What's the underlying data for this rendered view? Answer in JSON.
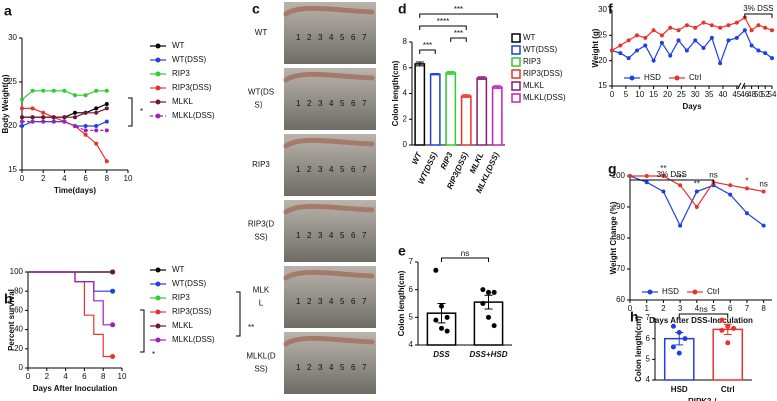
{
  "chart_data": [
    {
      "panel_label": "a",
      "type": "line",
      "xlabel": "Time(days)",
      "ylabel": "Body Weight(g)",
      "x": [
        0,
        1,
        2,
        3,
        4,
        5,
        6,
        7,
        8
      ],
      "xlim": [
        0,
        10
      ],
      "xticks": [
        0,
        2,
        4,
        6,
        8,
        10
      ],
      "ylim": [
        15,
        30
      ],
      "yticks": [
        15,
        20,
        25,
        30
      ],
      "legend": "right",
      "series": [
        {
          "name": "WT",
          "color": "#000000",
          "values": [
            21,
            21,
            21,
            21,
            21,
            21.5,
            21.5,
            22,
            22.5
          ]
        },
        {
          "name": "WT(DSS)",
          "color": "#1f3fe0",
          "values": [
            20,
            20.5,
            20.5,
            20.5,
            20.5,
            20,
            20,
            20,
            20.5
          ]
        },
        {
          "name": "RIP3",
          "color": "#2ecc2e",
          "values": [
            23,
            24,
            24,
            24,
            24,
            23.5,
            23.5,
            24,
            24
          ]
        },
        {
          "name": "RIP3(DSS)",
          "color": "#e8322b",
          "values": [
            22,
            22,
            21.5,
            21,
            20.5,
            20,
            19,
            18,
            16
          ]
        },
        {
          "name": "MLKL",
          "color": "#6b1a2a",
          "values": [
            21,
            21,
            21,
            21,
            21,
            21,
            21.5,
            21.5,
            22
          ]
        },
        {
          "name": "MLKL(DSS)",
          "color": "#a020c0",
          "dashed": true,
          "values": [
            20.5,
            20.5,
            20.5,
            20.5,
            20.5,
            20,
            19.5,
            19.5,
            19.5
          ]
        }
      ],
      "annotations": [
        "*"
      ]
    },
    {
      "panel_label": "b",
      "type": "step",
      "xlabel": "Days After Inoculation",
      "ylabel": "Percent survival",
      "x": [
        0,
        5,
        6,
        7,
        8,
        9
      ],
      "xlim": [
        0,
        10
      ],
      "xticks": [
        0,
        2,
        4,
        6,
        8,
        10
      ],
      "ylim": [
        0,
        100
      ],
      "yticks": [
        0,
        20,
        40,
        60,
        80,
        100
      ],
      "legend": "right",
      "series": [
        {
          "name": "WT",
          "color": "#000000",
          "values": [
            100,
            100,
            100,
            100,
            100,
            100
          ]
        },
        {
          "name": "WT(DSS)",
          "color": "#1f3fe0",
          "values": [
            100,
            90,
            90,
            80,
            80,
            80
          ]
        },
        {
          "name": "RIP3",
          "color": "#2ecc2e",
          "values": [
            100,
            100,
            100,
            100,
            100,
            100
          ]
        },
        {
          "name": "RIP3(DSS)",
          "color": "#e8322b",
          "values": [
            100,
            90,
            55,
            35,
            12,
            12
          ]
        },
        {
          "name": "MLKL",
          "color": "#6b1a2a",
          "values": [
            100,
            100,
            100,
            100,
            100,
            100
          ]
        },
        {
          "name": "MLKL(DSS)",
          "color": "#a020c0",
          "values": [
            100,
            90,
            90,
            70,
            45,
            45
          ]
        }
      ],
      "annotations": [
        "**",
        "*"
      ]
    },
    {
      "panel_label": "d",
      "type": "bar",
      "ylabel": "Colon length(cm)",
      "categories": [
        "WT",
        "WT(DSS)",
        "RIP3",
        "RIP3(DSS)",
        "MLKL",
        "MLKL(DSS)"
      ],
      "values": [
        6.3,
        5.5,
        5.6,
        3.8,
        5.2,
        4.5
      ],
      "errors": [
        0.15,
        0.05,
        0.1,
        0.1,
        0.1,
        0.1
      ],
      "colors": [
        "#000000",
        "#1f3fe0",
        "#2ecc2e",
        "#e8322b",
        "#8b1a6a",
        "#c020c0"
      ],
      "ylim": [
        0,
        8
      ],
      "yticks": [
        0,
        2,
        4,
        6,
        8
      ],
      "legend": "right",
      "significance": [
        {
          "label": "***",
          "between": [
            "WT",
            "MLKL(DSS)"
          ]
        },
        {
          "label": "****",
          "between": [
            "WT",
            "RIP3(DSS)"
          ]
        },
        {
          "label": "***",
          "between": [
            "RIP3",
            "RIP3(DSS)"
          ]
        },
        {
          "label": "***",
          "between": [
            "WT",
            "WT(DSS)"
          ]
        }
      ]
    },
    {
      "panel_label": "e",
      "type": "bar",
      "ylabel": "Colon length(cm)",
      "categories": [
        "DSS",
        "DSS+HSD"
      ],
      "values": [
        5.15,
        5.55
      ],
      "errors": [
        0.35,
        0.25
      ],
      "colors": [
        "#000000",
        "#000000"
      ],
      "points": [
        [
          6.7,
          5.4,
          5.0,
          4.9,
          4.6,
          4.5
        ],
        [
          6.0,
          5.9,
          5.9,
          5.5,
          5.0,
          4.7
        ]
      ],
      "ylim": [
        4,
        7
      ],
      "yticks": [
        4,
        5,
        6,
        7
      ],
      "significance": [
        {
          "label": "ns",
          "between": [
            "DSS",
            "DSS+HSD"
          ]
        }
      ]
    },
    {
      "panel_label": "f",
      "type": "line",
      "xlabel": "Days",
      "ylabel": "Weight (g)",
      "x": [
        0,
        3,
        6,
        9,
        12,
        15,
        18,
        21,
        24,
        27,
        30,
        33,
        36,
        39,
        42,
        45,
        46,
        48,
        50,
        52,
        54
      ],
      "xlim": [
        0,
        54
      ],
      "axis_break": [
        45,
        46
      ],
      "xticks": [
        0,
        5,
        10,
        15,
        20,
        25,
        30,
        35,
        40,
        45,
        46,
        48,
        50,
        52,
        54
      ],
      "ylim": [
        15,
        30
      ],
      "yticks": [
        15,
        20,
        25,
        30
      ],
      "legend": "bottom",
      "series": [
        {
          "name": "HSD",
          "color": "#1f3fe0",
          "values": [
            22,
            21.5,
            20.5,
            22,
            23,
            20,
            23.5,
            21,
            24,
            22,
            24,
            22.5,
            24.5,
            19.5,
            24,
            24.5,
            26,
            23,
            22,
            21.5,
            20.5
          ]
        },
        {
          "name": "Ctrl",
          "color": "#e8322b",
          "values": [
            22,
            23,
            24,
            25,
            24.5,
            26,
            25,
            26.5,
            26,
            27,
            26.5,
            27.5,
            27,
            26.5,
            27,
            27.5,
            28.5,
            26,
            27,
            26.5,
            26
          ]
        }
      ],
      "annotations": [
        {
          "label": "3% DSS",
          "x": [
            46,
            54
          ]
        }
      ]
    },
    {
      "panel_label": "g",
      "type": "line",
      "xlabel": "Days After DSS-Inoculation",
      "ylabel": "Weight Change (%)",
      "x": [
        0,
        1,
        2,
        3,
        4,
        5,
        6,
        7,
        8
      ],
      "xlim": [
        0,
        8.5
      ],
      "xticks": [
        0,
        1,
        2,
        3,
        4,
        5,
        6,
        7,
        8
      ],
      "ylim": [
        60,
        100
      ],
      "yticks": [
        60,
        70,
        80,
        90,
        100
      ],
      "legend": "bottom",
      "series": [
        {
          "name": "HSD",
          "color": "#1f3fe0",
          "values": [
            100,
            98,
            95,
            84,
            95,
            97,
            94,
            88,
            84
          ]
        },
        {
          "name": "Ctrl",
          "color": "#e8322b",
          "values": [
            100,
            100,
            100,
            97,
            90,
            98,
            97,
            96,
            95
          ]
        }
      ],
      "annotations": [
        {
          "label": "3% DSS",
          "x": [
            0,
            5
          ]
        },
        {
          "label": "**",
          "x": 2
        },
        {
          "label": "***",
          "x": 3
        },
        {
          "label": "**",
          "x": 4
        },
        {
          "label": "ns",
          "x": 5
        },
        {
          "label": "*",
          "x": 7
        },
        {
          "label": "ns",
          "x": 8
        }
      ]
    },
    {
      "panel_label": "h",
      "type": "bar",
      "ylabel": "Colon length(cm)",
      "xlabel": "RIPK3-/-",
      "categories": [
        "HSD",
        "Ctrl"
      ],
      "values": [
        6.0,
        6.45
      ],
      "errors": [
        0.3,
        0.25
      ],
      "colors": [
        "#1f3fe0",
        "#e8322b"
      ],
      "points": [
        [
          6.6,
          6.3,
          6.0,
          5.6,
          5.3
        ],
        [
          6.9,
          6.6,
          6.5,
          6.4,
          5.8
        ]
      ],
      "ylim": [
        4,
        7
      ],
      "yticks": [
        4,
        5,
        6,
        7
      ],
      "significance": [
        {
          "label": "ns",
          "between": [
            "HSD",
            "Ctrl"
          ]
        }
      ]
    }
  ],
  "photo_panel": {
    "panel_label": "c",
    "rows": [
      [
        "WT"
      ],
      [
        "WT(DS",
        "S）"
      ],
      [
        "RIP3"
      ],
      [
        "RIP3(D",
        "SS)"
      ],
      [
        "MLK",
        "L"
      ],
      [
        "MLKL(D",
        "SS)"
      ]
    ],
    "ruler_numbers": [
      "1",
      "2",
      "3",
      "4",
      "5",
      "6",
      "7"
    ]
  }
}
